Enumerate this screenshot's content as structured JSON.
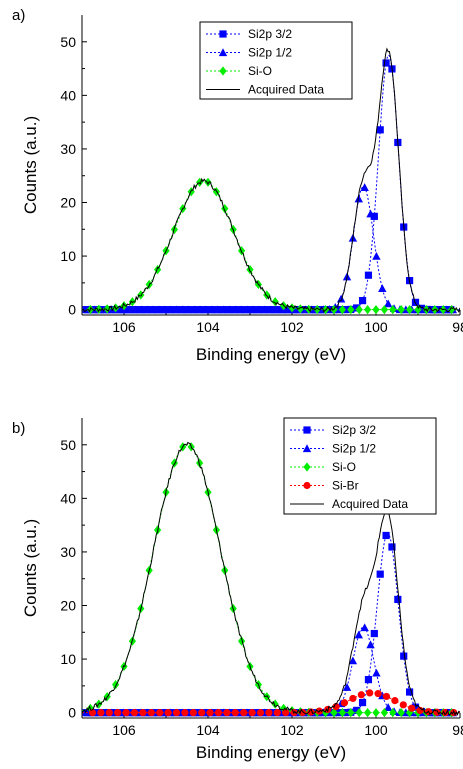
{
  "chart_data": [
    {
      "type": "line",
      "panel_label": "a)",
      "xlabel": "Binding energy (eV)",
      "ylabel": "Counts (a.u.)",
      "xlim": [
        107,
        98
      ],
      "ylim": [
        -1,
        55
      ],
      "x_reversed": true,
      "xticks": [
        106,
        104,
        102,
        100,
        98
      ],
      "yticks": [
        0,
        10,
        20,
        30,
        40,
        50
      ],
      "grid": false,
      "legend_position": "top-center",
      "fit_series": [
        {
          "name": "Si2p 3/2",
          "color": "#0000ff",
          "marker": "square",
          "dash": true,
          "center": 99.7,
          "amplitude": 47.5,
          "sigma": 0.24
        },
        {
          "name": "Si2p 1/2",
          "color": "#0000ff",
          "marker": "triangle",
          "dash": true,
          "center": 100.3,
          "amplitude": 23.0,
          "sigma": 0.24
        },
        {
          "name": "Si-O",
          "color": "#00ee00",
          "marker": "diamond",
          "dash": true,
          "center": 104.1,
          "amplitude": 24.0,
          "sigma": 0.72
        }
      ],
      "acquired": {
        "name": "Acquired Data",
        "color": "#000000"
      }
    },
    {
      "type": "line",
      "panel_label": "b)",
      "xlabel": "Binding energy (eV)",
      "ylabel": "Counts (a.u.)",
      "xlim": [
        107,
        98
      ],
      "ylim": [
        -1,
        55
      ],
      "x_reversed": true,
      "xticks": [
        106,
        104,
        102,
        100,
        98
      ],
      "yticks": [
        0,
        10,
        20,
        30,
        40,
        50
      ],
      "grid": false,
      "legend_position": "top-right",
      "fit_series": [
        {
          "name": "Si2p 3/2",
          "color": "#0000ff",
          "marker": "square",
          "dash": true,
          "center": 99.72,
          "amplitude": 33.5,
          "sigma": 0.25
        },
        {
          "name": "Si2p 1/2",
          "color": "#0000ff",
          "marker": "triangle",
          "dash": true,
          "center": 100.3,
          "amplitude": 16.0,
          "sigma": 0.25
        },
        {
          "name": "Si-O",
          "color": "#00ee00",
          "marker": "diamond",
          "dash": true,
          "center": 104.5,
          "amplitude": 50.0,
          "sigma": 0.8
        },
        {
          "name": "Si-Br",
          "color": "#ff0000",
          "marker": "circle",
          "dash": true,
          "center": 100.1,
          "amplitude": 3.7,
          "sigma": 0.55
        }
      ],
      "acquired": {
        "name": "Acquired Data",
        "color": "#000000"
      }
    }
  ]
}
